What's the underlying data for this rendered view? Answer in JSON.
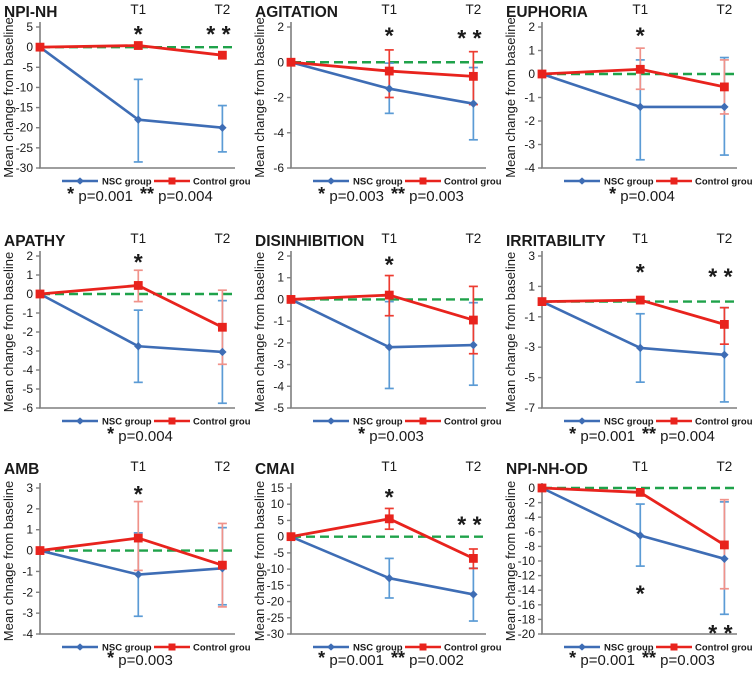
{
  "figure": {
    "legend": {
      "nsc_label": "NSC group",
      "control_label": "Control group"
    },
    "colors": {
      "nsc": "#3e6db5",
      "nsc_err": "#5b9bd5",
      "control": "#e8231d",
      "control_err_red": "#ed3c31",
      "control_err_pink": "#f0928a",
      "zero_line": "#1fa24a",
      "axis": "#7f7f7f",
      "text": "#1a1a1a"
    }
  },
  "chart_data": [
    {
      "type": "line",
      "title": "NPI-NH",
      "ylabel": "Mean change from baseline",
      "categories": [
        "",
        "T1",
        "T2"
      ],
      "ylim": [
        -30,
        5
      ],
      "ytick_step": 5,
      "grid": false,
      "zero_line": true,
      "series": [
        {
          "name": "NSC group",
          "color_key": "nsc",
          "err_color_key": "nsc_err",
          "values": [
            0,
            -18,
            -20
          ],
          "err": [
            null,
            [
              -28.5,
              -8
            ],
            [
              -26,
              -14.5
            ]
          ]
        },
        {
          "name": "Control group",
          "color_key": "control",
          "err_color_key": "control_err_red",
          "values": [
            0,
            0.4,
            -2
          ],
          "err": [
            null,
            null,
            null
          ]
        }
      ],
      "annotations": [
        {
          "x": "T1",
          "y": 4.3,
          "text": "*"
        },
        {
          "x": "T2",
          "y": 4.3,
          "text": "* *"
        }
      ],
      "pline": [
        {
          "star": "*",
          "label": "p=0.001"
        },
        {
          "star": "**",
          "label": "p=0.004"
        }
      ]
    },
    {
      "type": "line",
      "title": "AGITATION",
      "ylabel": "Mean change from baseline",
      "categories": [
        "",
        "T1",
        "T2"
      ],
      "ylim": [
        -6,
        2
      ],
      "ytick_step": 2,
      "grid": false,
      "zero_line": true,
      "series": [
        {
          "name": "NSC group",
          "color_key": "nsc",
          "err_color_key": "nsc_err",
          "values": [
            0,
            -1.5,
            -2.35
          ],
          "err": [
            null,
            [
              -2.9,
              -0.05
            ],
            [
              -4.4,
              -0.3
            ]
          ]
        },
        {
          "name": "Control group",
          "color_key": "control",
          "err_color_key": "control_err_red",
          "values": [
            0,
            -0.5,
            -0.8
          ],
          "err": [
            null,
            [
              -2.0,
              0.7
            ],
            [
              -2.4,
              0.6
            ]
          ]
        }
      ],
      "annotations": [
        {
          "x": "T1",
          "y": 1.75,
          "text": "*"
        },
        {
          "x": "T2",
          "y": 1.6,
          "text": "* *"
        }
      ],
      "pline": [
        {
          "star": "*",
          "label": "p=0.003"
        },
        {
          "star": "**",
          "label": "p=0.003"
        }
      ]
    },
    {
      "type": "line",
      "title": "EUPHORIA",
      "ylabel": "Mean change from baseline",
      "categories": [
        "",
        "T1",
        "T2"
      ],
      "ylim": [
        -4,
        2
      ],
      "ytick_step": 1,
      "grid": false,
      "zero_line": true,
      "series": [
        {
          "name": "NSC group",
          "color_key": "nsc",
          "err_color_key": "nsc_err",
          "values": [
            0,
            -1.4,
            -1.4
          ],
          "err": [
            null,
            [
              -3.65,
              0.6
            ],
            [
              -3.45,
              0.7
            ]
          ]
        },
        {
          "name": "Control group",
          "color_key": "control",
          "err_color_key": "control_err_pink",
          "values": [
            0,
            0.2,
            -0.55
          ],
          "err": [
            null,
            [
              -0.65,
              1.1
            ],
            [
              -1.7,
              0.6
            ]
          ]
        }
      ],
      "annotations": [
        {
          "x": "T1",
          "y": 1.8,
          "text": "*"
        }
      ],
      "pline": [
        {
          "star": "*",
          "label": "p=0.004"
        }
      ]
    },
    {
      "type": "line",
      "title": "APATHY",
      "ylabel": "Mean change from baseline",
      "categories": [
        "",
        "T1",
        "T2"
      ],
      "ylim": [
        -6,
        2
      ],
      "ytick_step": 1,
      "grid": false,
      "zero_line": true,
      "series": [
        {
          "name": "NSC group",
          "color_key": "nsc",
          "err_color_key": "nsc_err",
          "values": [
            0,
            -2.75,
            -3.05
          ],
          "err": [
            null,
            [
              -4.65,
              -0.85
            ],
            [
              -5.75,
              -0.35
            ]
          ]
        },
        {
          "name": "Control group",
          "color_key": "control",
          "err_color_key": "control_err_pink",
          "values": [
            0,
            0.45,
            -1.75
          ],
          "err": [
            null,
            [
              -0.4,
              1.25
            ],
            [
              -3.7,
              0.2
            ]
          ]
        }
      ],
      "annotations": [
        {
          "x": "T1",
          "y": 1.9,
          "text": "*"
        }
      ],
      "pline": [
        {
          "star": "*",
          "label": "p=0.004"
        }
      ]
    },
    {
      "type": "line",
      "title": "DISINHIBITION",
      "ylabel": "Mean change from baseline",
      "categories": [
        "",
        "T1",
        "T2"
      ],
      "ylim": [
        -5,
        2
      ],
      "ytick_step": 1,
      "grid": false,
      "zero_line": true,
      "series": [
        {
          "name": "NSC group",
          "color_key": "nsc",
          "err_color_key": "nsc_err",
          "values": [
            0,
            -2.2,
            -2.1
          ],
          "err": [
            null,
            [
              -4.1,
              -0.1
            ],
            [
              -3.95,
              -0.15
            ]
          ]
        },
        {
          "name": "Control group",
          "color_key": "control",
          "err_color_key": "control_err_red",
          "values": [
            0,
            0.2,
            -0.95
          ],
          "err": [
            null,
            [
              -0.75,
              1.1
            ],
            [
              -2.5,
              0.6
            ]
          ]
        }
      ],
      "annotations": [
        {
          "x": "T1",
          "y": 1.8,
          "text": "*"
        }
      ],
      "pline": [
        {
          "star": "*",
          "label": "p=0.003"
        }
      ]
    },
    {
      "type": "line",
      "title": "IRRITABILITY",
      "ylabel": "Mean change from baseline",
      "categories": [
        "",
        "T1",
        "T2"
      ],
      "ylim": [
        -7,
        3
      ],
      "ytick_step": 2,
      "grid": false,
      "zero_line": true,
      "series": [
        {
          "name": "NSC group",
          "color_key": "nsc",
          "err_color_key": "nsc_err",
          "values": [
            0,
            -3.05,
            -3.5
          ],
          "err": [
            null,
            [
              -5.3,
              -0.8
            ],
            [
              -6.6,
              -0.4
            ]
          ]
        },
        {
          "name": "Control group",
          "color_key": "control",
          "err_color_key": "control_err_red",
          "values": [
            0,
            0.1,
            -1.5
          ],
          "err": [
            null,
            null,
            [
              -2.8,
              -0.4
            ]
          ]
        }
      ],
      "annotations": [
        {
          "x": "T1",
          "y": 2.2,
          "text": "*"
        },
        {
          "x": "T2",
          "y": 1.9,
          "text": "* *"
        }
      ],
      "pline": [
        {
          "star": "*",
          "label": "p=0.001"
        },
        {
          "star": "**",
          "label": "p=0.004"
        }
      ]
    },
    {
      "type": "line",
      "title": "AMB",
      "ylabel": "Mean chnage from baseline",
      "categories": [
        "",
        "T1",
        "T2"
      ],
      "ylim": [
        -4,
        3
      ],
      "ytick_step": 1,
      "grid": false,
      "zero_line": true,
      "series": [
        {
          "name": "NSC group",
          "color_key": "nsc",
          "err_color_key": "nsc_err",
          "values": [
            0,
            -1.15,
            -0.85
          ],
          "err": [
            null,
            [
              -3.15,
              0.85
            ],
            [
              -2.6,
              1.1
            ]
          ]
        },
        {
          "name": "Control group",
          "color_key": "control",
          "err_color_key": "control_err_pink",
          "values": [
            0,
            0.6,
            -0.7
          ],
          "err": [
            null,
            [
              -0.95,
              2.35
            ],
            [
              -2.7,
              1.3
            ]
          ]
        }
      ],
      "annotations": [
        {
          "x": "T1",
          "y": 2.9,
          "text": "*"
        }
      ],
      "pline": [
        {
          "star": "*",
          "label": "p=0.003"
        }
      ]
    },
    {
      "type": "line",
      "title": "CMAI",
      "ylabel": "Mean change from baseline",
      "categories": [
        "",
        "T1",
        "T2"
      ],
      "ylim": [
        -30,
        15
      ],
      "ytick_step": 5,
      "grid": false,
      "zero_line": true,
      "series": [
        {
          "name": "NSC group",
          "color_key": "nsc",
          "err_color_key": "nsc_err",
          "values": [
            0,
            -12.8,
            -17.8
          ],
          "err": [
            null,
            [
              -18.9,
              -6.7
            ],
            [
              -26,
              -9.7
            ]
          ]
        },
        {
          "name": "Control group",
          "color_key": "control",
          "err_color_key": "control_err_red",
          "values": [
            0,
            5.5,
            -6.7
          ],
          "err": [
            null,
            [
              2.3,
              8.7
            ],
            [
              -9.8,
              -3.8
            ]
          ]
        }
      ],
      "annotations": [
        {
          "x": "T1",
          "y": 13.5,
          "text": "*"
        },
        {
          "x": "T2",
          "y": 5.0,
          "text": "* *"
        }
      ],
      "pline": [
        {
          "star": "*",
          "label": "p=0.001"
        },
        {
          "star": "**",
          "label": "p=0.002"
        }
      ]
    },
    {
      "type": "line",
      "title": "NPI-NH-OD",
      "ylabel": "Mean change from baseline",
      "categories": [
        "",
        "T1",
        "T2"
      ],
      "ylim": [
        -20,
        0
      ],
      "ytick_step": 2,
      "grid": false,
      "zero_line": true,
      "series": [
        {
          "name": "NSC group",
          "color_key": "nsc",
          "err_color_key": "nsc_err",
          "values": [
            0,
            -6.5,
            -9.7
          ],
          "err": [
            null,
            [
              -10.7,
              -2.2
            ],
            [
              -17.3,
              -1.9
            ]
          ]
        },
        {
          "name": "Control group",
          "color_key": "control",
          "err_color_key": "control_err_pink",
          "values": [
            0,
            -0.6,
            -7.8
          ],
          "err": [
            null,
            null,
            [
              -13.8,
              -1.6
            ]
          ]
        }
      ],
      "annotations": [
        {
          "x": "T1",
          "y": -13.9,
          "text": "*"
        },
        {
          "x": "T2",
          "y": -19.3,
          "text": "* *"
        }
      ],
      "pline": [
        {
          "star": "*",
          "label": "p=0.001"
        },
        {
          "star": "**",
          "label": "p=0.003"
        }
      ]
    }
  ]
}
